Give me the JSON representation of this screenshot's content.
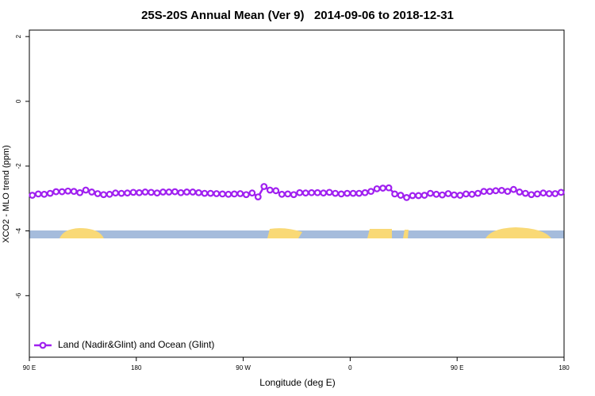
{
  "chart_data": {
    "type": "line",
    "title": "25S-20S Annual Mean (Ver 9)   2014-09-06 to 2018-12-31",
    "xlabel": "Longitude (deg E)",
    "ylabel": "XCO2 - MLO trend (ppm)",
    "x": [
      92.5,
      97.5,
      102.5,
      107.5,
      112.5,
      117.5,
      122.5,
      127.5,
      132.5,
      137.5,
      142.5,
      147.5,
      152.5,
      157.5,
      162.5,
      167.5,
      172.5,
      177.5,
      182.5,
      187.5,
      192.5,
      197.5,
      202.5,
      207.5,
      212.5,
      217.5,
      222.5,
      227.5,
      232.5,
      237.5,
      242.5,
      247.5,
      252.5,
      257.5,
      262.5,
      267.5,
      272.5,
      277.5,
      282.5,
      287.5,
      292.5,
      297.5,
      302.5,
      307.5,
      312.5,
      317.5,
      322.5,
      327.5,
      332.5,
      337.5,
      342.5,
      347.5,
      352.5,
      357.5,
      362.5,
      367.5,
      372.5,
      377.5,
      382.5,
      387.5,
      392.5,
      397.5,
      402.5,
      407.5,
      412.5,
      417.5,
      422.5,
      427.5,
      432.5,
      437.5,
      442.5,
      447.5,
      452.5,
      457.5,
      462.5,
      467.5,
      472.5,
      477.5,
      482.5,
      487.5,
      492.5,
      497.5,
      502.5,
      507.5,
      512.5,
      517.5,
      522.5,
      527.5,
      532.5,
      537.5
    ],
    "series": [
      {
        "name": "Land (Nadir&Glint) and Ocean (Glint)",
        "color": "#a020f0",
        "values": [
          -2.9,
          -2.86,
          -2.87,
          -2.84,
          -2.79,
          -2.79,
          -2.77,
          -2.78,
          -2.82,
          -2.74,
          -2.8,
          -2.85,
          -2.88,
          -2.87,
          -2.83,
          -2.84,
          -2.83,
          -2.81,
          -2.82,
          -2.8,
          -2.81,
          -2.83,
          -2.8,
          -2.8,
          -2.79,
          -2.82,
          -2.8,
          -2.8,
          -2.82,
          -2.84,
          -2.84,
          -2.85,
          -2.86,
          -2.87,
          -2.86,
          -2.85,
          -2.88,
          -2.83,
          -2.95,
          -2.63,
          -2.74,
          -2.76,
          -2.87,
          -2.86,
          -2.88,
          -2.82,
          -2.83,
          -2.82,
          -2.82,
          -2.83,
          -2.81,
          -2.84,
          -2.86,
          -2.84,
          -2.84,
          -2.84,
          -2.82,
          -2.78,
          -2.7,
          -2.68,
          -2.67,
          -2.86,
          -2.9,
          -2.97,
          -2.91,
          -2.91,
          -2.9,
          -2.84,
          -2.87,
          -2.89,
          -2.85,
          -2.89,
          -2.9,
          -2.86,
          -2.87,
          -2.84,
          -2.78,
          -2.78,
          -2.76,
          -2.75,
          -2.78,
          -2.72,
          -2.8,
          -2.84,
          -2.88,
          -2.86,
          -2.83,
          -2.85,
          -2.85,
          -2.81
        ]
      }
    ],
    "xlim": [
      90,
      540
    ],
    "xticks": [
      {
        "value": 90,
        "label": "90 E"
      },
      180,
      {
        "value": 270,
        "label": "90 W"
      },
      {
        "value": 360,
        "label": "0"
      },
      {
        "value": 450,
        "label": "90 E"
      },
      {
        "value": 540,
        "label": "180"
      }
    ],
    "ylim": [
      -7.9,
      2.2
    ],
    "yticks": [
      -6,
      -4,
      -2,
      0,
      2
    ],
    "legend_loc": "lower left"
  }
}
